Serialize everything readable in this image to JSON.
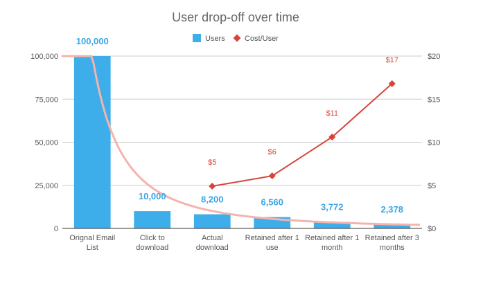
{
  "chart_data": {
    "type": "bar",
    "title": "User drop-off over time",
    "categories": [
      [
        "Orignal Email",
        "List"
      ],
      [
        "Click to",
        "download"
      ],
      [
        "Actual",
        "download"
      ],
      [
        "Retained after 1",
        "use"
      ],
      [
        "Retained after 1",
        "month"
      ],
      [
        "Retained after 3",
        "months"
      ]
    ],
    "series": [
      {
        "name": "Users",
        "type": "bar",
        "axis": "left",
        "color": "#3daee9",
        "values": [
          100000,
          10000,
          8200,
          6560,
          3772,
          2378
        ],
        "labels": [
          "100,000",
          "10,000",
          "8,200",
          "6,560",
          "3,772",
          "2,378"
        ]
      },
      {
        "name": "Cost/User",
        "type": "line",
        "axis": "right",
        "color": "#d6453c",
        "values": [
          null,
          null,
          4.9,
          6.1,
          10.6,
          16.8
        ],
        "labels": [
          null,
          null,
          "$5",
          "$6",
          "$11",
          "$17"
        ]
      }
    ],
    "trendline": {
      "type": "power",
      "color": "#f5b3ad",
      "via": "Users"
    },
    "y_left": {
      "min": 0,
      "max": 100000,
      "ticks": [
        0,
        25000,
        50000,
        75000,
        100000
      ],
      "tick_labels": [
        "0",
        "25,000",
        "50,000",
        "75,000",
        "100,000"
      ]
    },
    "y_right": {
      "min": 0,
      "max": 20,
      "ticks": [
        0,
        5,
        10,
        15,
        20
      ],
      "tick_labels": [
        "$0",
        "$5",
        "$10",
        "$15",
        "$20"
      ]
    },
    "legend": {
      "position": "top",
      "entries": [
        "Users",
        "Cost/User"
      ]
    },
    "grid": true
  }
}
